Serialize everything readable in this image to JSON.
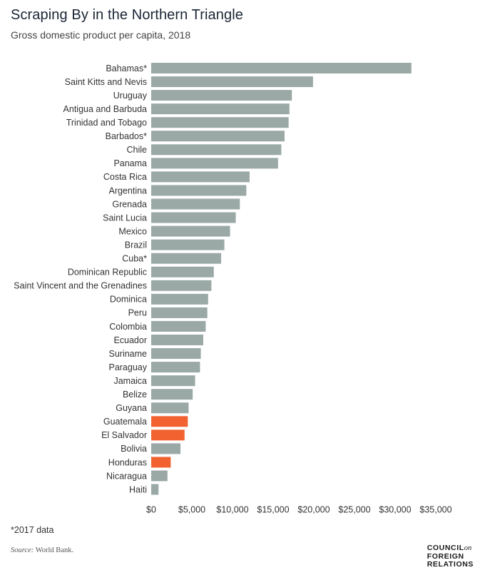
{
  "title": "Scraping By in the Northern Triangle",
  "subtitle": "Gross domestic product per capita, 2018",
  "footnote": "*2017 data",
  "source": {
    "label": "Source:",
    "text": "World Bank."
  },
  "logo": {
    "line1": "COUNCIL",
    "line1_suffix": "on",
    "line2": "FOREIGN",
    "line3": "RELATIONS"
  },
  "colors": {
    "default_bar": "#9aa9a6",
    "highlight_bar": "#f26130"
  },
  "chart_data": {
    "type": "bar",
    "orientation": "horizontal",
    "categories": [
      "Bahamas*",
      "Saint Kitts and Nevis",
      "Uruguay",
      "Antigua and Barbuda",
      "Trinidad and Tobago",
      "Barbados*",
      "Chile",
      "Panama",
      "Costa Rica",
      "Argentina",
      "Grenada",
      "Saint Lucia",
      "Mexico",
      "Brazil",
      "Cuba*",
      "Dominican Republic",
      "Saint Vincent and the Grenadines",
      "Dominica",
      "Peru",
      "Colombia",
      "Ecuador",
      "Suriname",
      "Paraguay",
      "Jamaica",
      "Belize",
      "Guyana",
      "Guatemala",
      "El Salvador",
      "Bolivia",
      "Honduras",
      "Nicaragua",
      "Haiti"
    ],
    "values": [
      32000,
      19900,
      17300,
      17000,
      16900,
      16400,
      16000,
      15600,
      12100,
      11700,
      10900,
      10400,
      9700,
      9000,
      8600,
      7700,
      7400,
      7000,
      6900,
      6700,
      6400,
      6100,
      6000,
      5400,
      5100,
      4600,
      4500,
      4100,
      3600,
      2400,
      2000,
      900
    ],
    "highlight": [
      "Guatemala",
      "El Salvador",
      "Honduras"
    ],
    "xlim": [
      0,
      35000
    ],
    "x_ticks": [
      0,
      5000,
      10000,
      15000,
      20000,
      25000,
      30000,
      35000
    ],
    "x_tick_labels": [
      "$0",
      "$5,000",
      "$10,000",
      "$15,000",
      "$20,000",
      "$25,000",
      "$30,000",
      "$35,000"
    ],
    "grid": false,
    "legend": false
  }
}
